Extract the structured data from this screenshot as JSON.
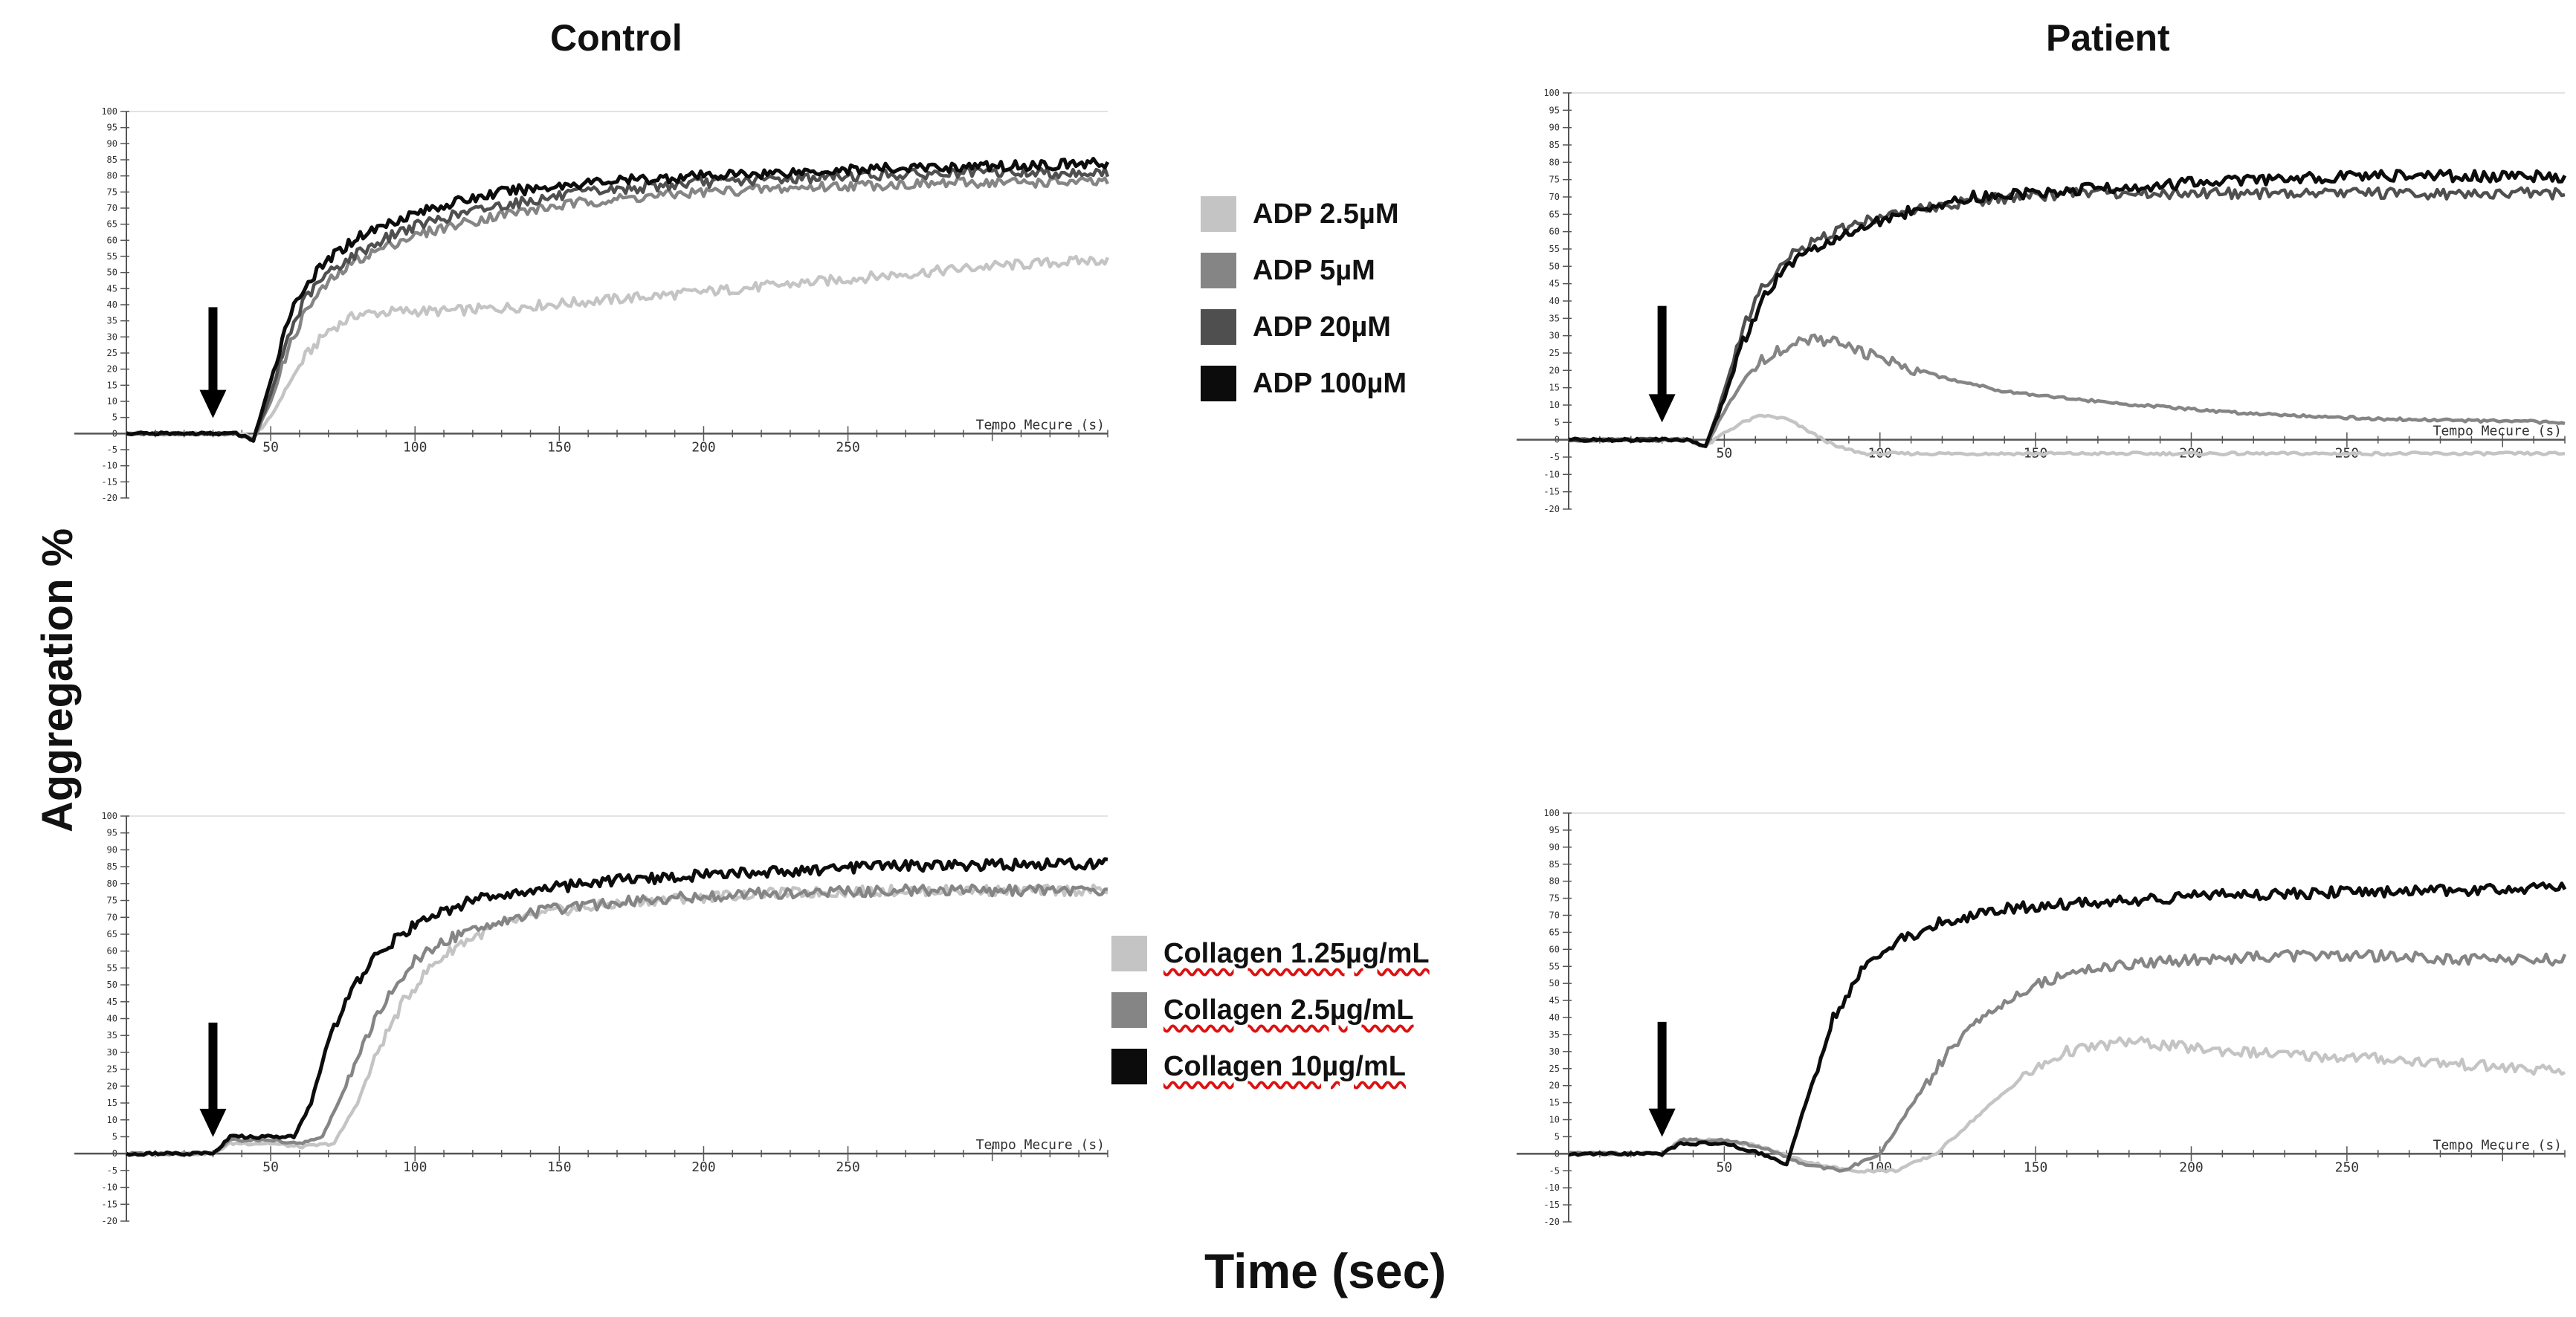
{
  "figure": {
    "column_titles": [
      "Control",
      "Patient"
    ],
    "ylabel": "Aggregation %",
    "xlabel": "Time (sec)",
    "legend_adp": [
      {
        "label": "ADP 2.5µM",
        "color": "#c4c4c4"
      },
      {
        "label": "ADP 5µM",
        "color": "#858585"
      },
      {
        "label": "ADP 20µM",
        "color": "#4f4f4f"
      },
      {
        "label": "ADP 100µM",
        "color": "#0c0c0c"
      }
    ],
    "legend_collagen": [
      {
        "label": "Collagen 1.25µg/mL",
        "color": "#c4c4c4"
      },
      {
        "label": "Collagen 2.5µg/mL",
        "color": "#858585"
      },
      {
        "label": "Collagen 10µg/mL",
        "color": "#0c0c0c"
      }
    ]
  },
  "chart_data": [
    {
      "type": "line",
      "panel": "control-adp",
      "title": "Control",
      "instrument_axis_label": "Tempo Mecure (s)",
      "xlim": [
        0,
        340
      ],
      "ylim": [
        -20,
        100
      ],
      "yticks": [
        100,
        95,
        90,
        85,
        80,
        75,
        70,
        65,
        60,
        55,
        50,
        45,
        40,
        35,
        30,
        25,
        20,
        15,
        10,
        5,
        0,
        -5,
        -10,
        -15,
        -20
      ],
      "xticks": [
        50,
        100,
        150,
        200,
        250
      ],
      "addition_time": 30,
      "series": [
        {
          "name": "ADP 2.5µM",
          "color": "#c4c4c4",
          "x": [
            0,
            38,
            44,
            50,
            56,
            62,
            70,
            80,
            95,
            110,
            130,
            160,
            200,
            250,
            300,
            340
          ],
          "y": [
            0,
            0,
            -1,
            5,
            15,
            24,
            32,
            37,
            38,
            38,
            39,
            41,
            44,
            48,
            52,
            54
          ]
        },
        {
          "name": "ADP 5µM",
          "color": "#858585",
          "x": [
            0,
            38,
            44,
            50,
            56,
            62,
            70,
            80,
            95,
            110,
            130,
            160,
            200,
            250,
            300,
            340
          ],
          "y": [
            0,
            0,
            -2,
            10,
            26,
            38,
            47,
            54,
            60,
            64,
            68,
            72,
            75,
            77,
            78,
            78
          ]
        },
        {
          "name": "ADP 20µM",
          "color": "#4f4f4f",
          "x": [
            0,
            38,
            44,
            50,
            56,
            62,
            70,
            80,
            95,
            110,
            130,
            160,
            200,
            250,
            300,
            340
          ],
          "y": [
            0,
            0,
            -2,
            12,
            30,
            42,
            50,
            56,
            63,
            67,
            71,
            75,
            78,
            80,
            81,
            81
          ]
        },
        {
          "name": "ADP 100µM",
          "color": "#0c0c0c",
          "x": [
            0,
            38,
            44,
            50,
            56,
            62,
            70,
            80,
            95,
            110,
            130,
            160,
            200,
            250,
            300,
            340
          ],
          "y": [
            0,
            0,
            -2,
            16,
            36,
            46,
            54,
            61,
            67,
            71,
            75,
            78,
            80,
            82,
            83,
            84
          ]
        }
      ]
    },
    {
      "type": "line",
      "panel": "patient-adp",
      "title": "Patient",
      "instrument_axis_label": "Tempo Mecure (s)",
      "xlim": [
        0,
        320
      ],
      "ylim": [
        -20,
        100
      ],
      "yticks": [
        100,
        95,
        90,
        85,
        80,
        75,
        70,
        65,
        60,
        55,
        50,
        45,
        40,
        35,
        30,
        25,
        20,
        15,
        10,
        5,
        0,
        -5,
        -10,
        -15,
        -20
      ],
      "xticks": [
        50,
        100,
        150,
        200,
        250
      ],
      "addition_time": 30,
      "series": [
        {
          "name": "ADP 2.5µM",
          "color": "#c4c4c4",
          "x": [
            0,
            38,
            44,
            50,
            56,
            62,
            70,
            78,
            86,
            95,
            105,
            120,
            160,
            220,
            320
          ],
          "y": [
            0,
            0,
            -2,
            2,
            5,
            7,
            6,
            2,
            -2,
            -4,
            -4,
            -4,
            -4,
            -4,
            -4
          ]
        },
        {
          "name": "ADP 5µM",
          "color": "#858585",
          "x": [
            0,
            38,
            44,
            50,
            56,
            62,
            70,
            78,
            86,
            95,
            105,
            120,
            140,
            170,
            210,
            260,
            320
          ],
          "y": [
            0,
            0,
            -2,
            8,
            17,
            23,
            27,
            29,
            28,
            25,
            22,
            18,
            14,
            11,
            8,
            6,
            5
          ]
        },
        {
          "name": "ADP 20µM",
          "color": "#4f4f4f",
          "x": [
            0,
            38,
            44,
            50,
            56,
            62,
            70,
            80,
            95,
            110,
            130,
            160,
            200,
            250,
            320
          ],
          "y": [
            0,
            0,
            -2,
            14,
            32,
            44,
            52,
            58,
            63,
            66,
            69,
            71,
            71,
            71,
            71
          ]
        },
        {
          "name": "ADP 100µM",
          "color": "#0c0c0c",
          "x": [
            0,
            38,
            44,
            50,
            56,
            62,
            70,
            80,
            95,
            110,
            130,
            160,
            200,
            250,
            320
          ],
          "y": [
            0,
            0,
            -2,
            12,
            28,
            40,
            50,
            56,
            62,
            66,
            70,
            72,
            74,
            76,
            76
          ]
        }
      ]
    },
    {
      "type": "line",
      "panel": "control-collagen",
      "title": "Control",
      "instrument_axis_label": "Tempo Mecure (s)",
      "xlim": [
        0,
        340
      ],
      "ylim": [
        -20,
        100
      ],
      "yticks": [
        100,
        95,
        90,
        85,
        80,
        75,
        70,
        65,
        60,
        55,
        50,
        45,
        40,
        35,
        30,
        25,
        20,
        15,
        10,
        5,
        0,
        -5,
        -10,
        -15,
        -20
      ],
      "xticks": [
        50,
        100,
        150,
        200,
        250
      ],
      "addition_time": 30,
      "series": [
        {
          "name": "Collagen 1.25µg/mL",
          "color": "#c4c4c4",
          "x": [
            0,
            30,
            36,
            50,
            60,
            72,
            80,
            88,
            96,
            105,
            115,
            130,
            150,
            180,
            220,
            270,
            340
          ],
          "y": [
            0,
            0,
            3,
            3,
            2,
            3,
            15,
            32,
            45,
            55,
            62,
            68,
            72,
            75,
            77,
            78,
            78
          ]
        },
        {
          "name": "Collagen 2.5µg/mL",
          "color": "#858585",
          "x": [
            0,
            30,
            36,
            50,
            60,
            68,
            76,
            84,
            92,
            100,
            110,
            125,
            145,
            175,
            215,
            270,
            340
          ],
          "y": [
            0,
            0,
            4,
            4,
            3,
            5,
            20,
            36,
            48,
            57,
            63,
            68,
            72,
            75,
            77,
            78,
            78
          ]
        },
        {
          "name": "Collagen 10µg/mL",
          "color": "#0c0c0c",
          "x": [
            0,
            30,
            36,
            50,
            58,
            64,
            70,
            78,
            86,
            95,
            105,
            120,
            140,
            170,
            210,
            260,
            340
          ],
          "y": [
            0,
            0,
            5,
            5,
            5,
            15,
            33,
            48,
            58,
            65,
            70,
            75,
            78,
            81,
            83,
            85,
            86
          ]
        }
      ]
    },
    {
      "type": "line",
      "panel": "patient-collagen",
      "title": "Patient",
      "instrument_axis_label": "Tempo Mecure (s)",
      "xlim": [
        0,
        320
      ],
      "ylim": [
        -20,
        100
      ],
      "yticks": [
        100,
        95,
        90,
        85,
        80,
        75,
        70,
        65,
        60,
        55,
        50,
        45,
        40,
        35,
        30,
        25,
        20,
        15,
        10,
        5,
        0,
        -5,
        -10,
        -15,
        -20
      ],
      "xticks": [
        50,
        100,
        150,
        200,
        250
      ],
      "addition_time": 30,
      "series": [
        {
          "name": "Collagen 1.25µg/mL",
          "color": "#c4c4c4",
          "x": [
            0,
            30,
            36,
            50,
            62,
            75,
            90,
            105,
            118,
            130,
            145,
            160,
            180,
            200,
            230,
            260,
            290,
            320
          ],
          "y": [
            0,
            0,
            4,
            4,
            2,
            -2,
            -5,
            -5,
            0,
            10,
            22,
            30,
            33,
            31,
            29,
            28,
            26,
            24
          ]
        },
        {
          "name": "Collagen 2.5µg/mL",
          "color": "#858585",
          "x": [
            0,
            30,
            36,
            50,
            62,
            75,
            88,
            100,
            110,
            122,
            135,
            150,
            170,
            200,
            230,
            260,
            290,
            320
          ],
          "y": [
            0,
            0,
            4,
            4,
            2,
            -3,
            -5,
            0,
            14,
            30,
            42,
            50,
            55,
            57,
            58,
            58,
            57,
            57
          ]
        },
        {
          "name": "Collagen 10µg/mL",
          "color": "#0c0c0c",
          "x": [
            0,
            30,
            36,
            50,
            62,
            70,
            78,
            85,
            95,
            105,
            120,
            140,
            170,
            210,
            260,
            320
          ],
          "y": [
            0,
            0,
            3,
            3,
            0,
            -3,
            20,
            40,
            55,
            62,
            68,
            72,
            74,
            76,
            77,
            78
          ]
        }
      ]
    }
  ]
}
